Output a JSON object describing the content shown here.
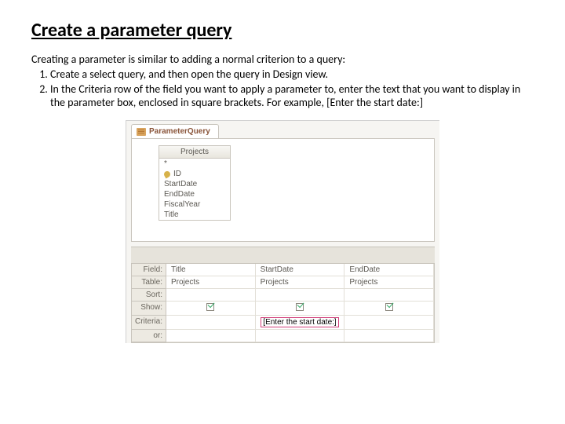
{
  "heading": "Create a parameter query",
  "intro": "Creating a parameter is similar to adding a normal criterion to a query:",
  "steps": [
    "Create a select query, and then open the query in Design view.",
    "In the Criteria row of the field you want to apply a parameter to, enter the text that you want to display in the parameter box, enclosed in square brackets. For example, [Enter the start date:]"
  ],
  "screenshot": {
    "tab_label": "ParameterQuery",
    "fieldbox_title": "Projects",
    "fields": [
      "*",
      "ID",
      "StartDate",
      "EndDate",
      "FiscalYear",
      "Title"
    ],
    "key_field_index": 1,
    "row_labels": [
      "Field:",
      "Table:",
      "Sort:",
      "Show:",
      "Criteria:",
      "or:"
    ],
    "columns": [
      {
        "field": "Title",
        "table": "Projects",
        "show": true,
        "criteria": ""
      },
      {
        "field": "StartDate",
        "table": "Projects",
        "show": true,
        "criteria": "[Enter the start date:]"
      },
      {
        "field": "EndDate",
        "table": "Projects",
        "show": true,
        "criteria": ""
      }
    ],
    "colors": {
      "panel_bg": "#f6f5f2",
      "border": "#c9c5bd",
      "highlight_border": "#d23f7a",
      "tab_text": "#8a553a"
    }
  }
}
